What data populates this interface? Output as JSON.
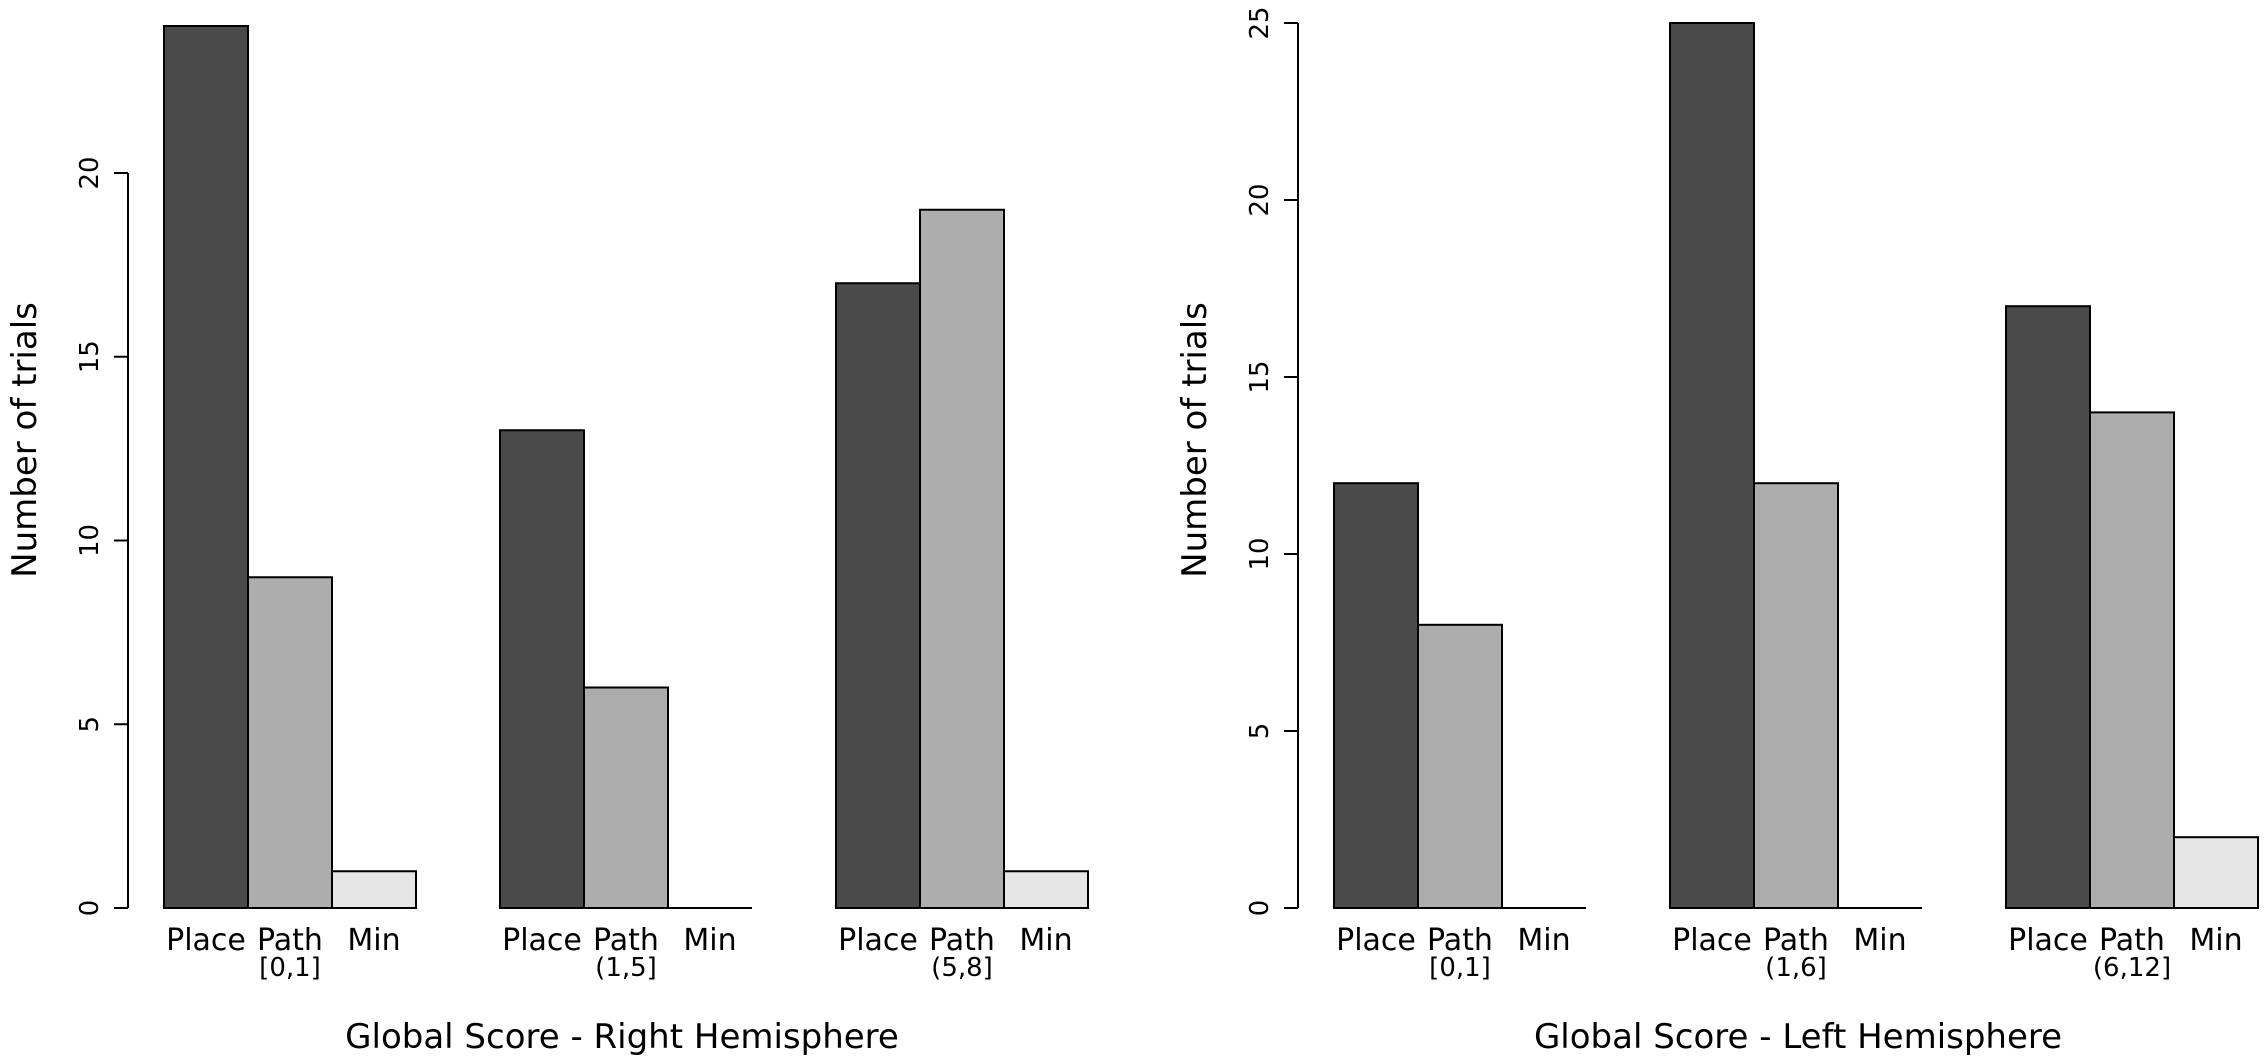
{
  "colors": {
    "Place": "#4a4a4a",
    "Path": "#adadad",
    "Min": "#e6e6e6",
    "axis": "#000000"
  },
  "chart_data": [
    {
      "type": "bar",
      "ylabel": "Number of trials",
      "xlabel": "Global Score - Right Hemisphere",
      "yticks": [
        0,
        5,
        10,
        15,
        20
      ],
      "ylim": [
        0,
        24
      ],
      "bar_labels": [
        "Place",
        "Path",
        "Min"
      ],
      "groups": [
        {
          "label": "[0,1]",
          "values": [
            24,
            9,
            1
          ]
        },
        {
          "label": "(1,5]",
          "values": [
            13,
            6,
            0
          ]
        },
        {
          "label": "(5,8]",
          "values": [
            17,
            19,
            1
          ]
        }
      ],
      "legend": "none",
      "grid": false
    },
    {
      "type": "bar",
      "ylabel": "Number of trials",
      "xlabel": "Global Score - Left Hemisphere",
      "yticks": [
        0,
        5,
        10,
        15,
        20,
        25
      ],
      "ylim": [
        0,
        25
      ],
      "bar_labels": [
        "Place",
        "Path",
        "Min"
      ],
      "groups": [
        {
          "label": "[0,1]",
          "values": [
            12,
            8,
            0
          ]
        },
        {
          "label": "(1,6]",
          "values": [
            25,
            12,
            0
          ]
        },
        {
          "label": "(6,12]",
          "values": [
            17,
            14,
            2
          ]
        }
      ],
      "legend": "none",
      "grid": false
    }
  ]
}
